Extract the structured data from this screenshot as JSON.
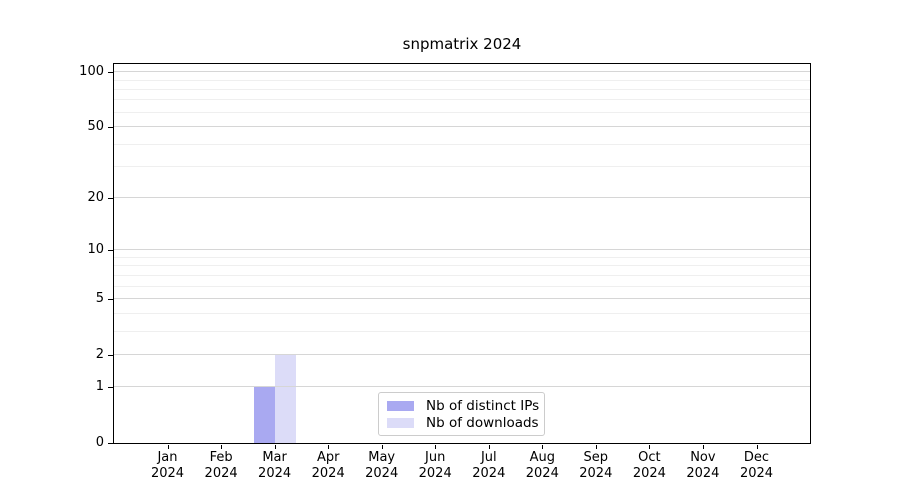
{
  "chart_data": {
    "type": "bar",
    "title": "snpmatrix 2024",
    "year": "2024",
    "categories": [
      "Jan",
      "Feb",
      "Mar",
      "Apr",
      "May",
      "Jun",
      "Jul",
      "Aug",
      "Sep",
      "Oct",
      "Nov",
      "Dec"
    ],
    "series": [
      {
        "name": "Nb of distinct IPs",
        "color": "#a9a9f1",
        "values": [
          0,
          0,
          1,
          0,
          0,
          0,
          0,
          0,
          0,
          0,
          0,
          0
        ]
      },
      {
        "name": "Nb of downloads",
        "color": "#dcdcf8",
        "values": [
          0,
          0,
          2,
          0,
          0,
          0,
          0,
          0,
          0,
          0,
          0,
          0
        ]
      }
    ],
    "xlabel": "",
    "ylabel": "",
    "yscale": "log1p",
    "yticks": [
      0,
      1,
      2,
      5,
      10,
      20,
      50,
      100
    ],
    "ylim": [
      0,
      111
    ],
    "grid": "horizontal",
    "legend_position": "bottom-center"
  },
  "colors": {
    "bar_distinct_ips": "#a9a9f1",
    "bar_downloads": "#dcdcf8",
    "grid_major": "#d6d6d6",
    "grid_minor": "#efefef",
    "axis": "#000000",
    "legend_border": "#cccccc",
    "background": "#ffffff"
  }
}
